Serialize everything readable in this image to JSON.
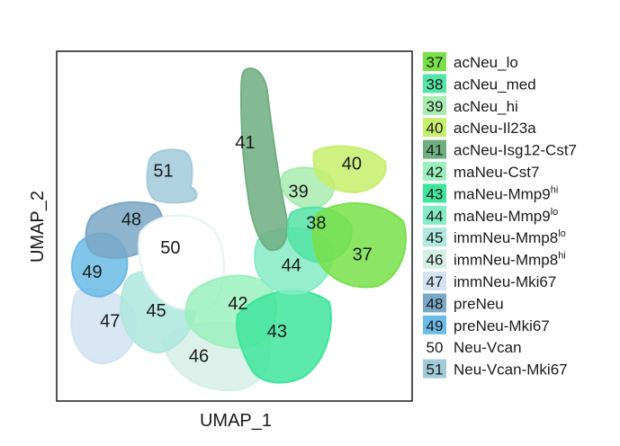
{
  "chart_data": {
    "type": "scatter",
    "title": "",
    "xlabel": "UMAP_1",
    "ylabel": "UMAP_2",
    "xlim": [
      0,
      100
    ],
    "ylim": [
      0,
      100
    ],
    "grid": false,
    "legend_placement": "right",
    "series": [
      {
        "id": "37",
        "name_main": "acNeu_lo",
        "name_sup": "",
        "color": "#79e04a"
      },
      {
        "id": "38",
        "name_main": "acNeu_med",
        "name_sup": "",
        "color": "#55e3a6"
      },
      {
        "id": "39",
        "name_main": "acNeu_hi",
        "name_sup": "",
        "color": "#a8ecb0"
      },
      {
        "id": "40",
        "name_main": "acNeu-Il23a",
        "name_sup": "",
        "color": "#c6ef6c"
      },
      {
        "id": "41",
        "name_main": "acNeu-Isg12-Cst7",
        "name_sup": "",
        "color": "#6fae80"
      },
      {
        "id": "42",
        "name_main": "maNeu-Cst7",
        "name_sup": "",
        "color": "#9bf0bd"
      },
      {
        "id": "43",
        "name_main": "maNeu-Mmp9",
        "name_sup": "hi",
        "color": "#3fe59c"
      },
      {
        "id": "44",
        "name_main": "maNeu-Mmp9",
        "name_sup": "lo",
        "color": "#84ebc6"
      },
      {
        "id": "45",
        "name_main": "immNeu-Mmp8",
        "name_sup": "lo",
        "color": "#aee8de"
      },
      {
        "id": "46",
        "name_main": "immNeu-Mmp8",
        "name_sup": "hi",
        "color": "#d5eee6"
      },
      {
        "id": "47",
        "name_main": "immNeu-Mki67",
        "name_sup": "",
        "color": "#d2e2f2"
      },
      {
        "id": "48",
        "name_main": "preNeu",
        "name_sup": "",
        "color": "#7aa7c6"
      },
      {
        "id": "49",
        "name_main": "preNeu-Mki67",
        "name_sup": "",
        "color": "#6bbbe8"
      },
      {
        "id": "50",
        "name_main": "Neu-Vcan",
        "name_sup": "",
        "color": "#ffffff"
      },
      {
        "id": "51",
        "name_main": "Neu-Vcan-Mki67",
        "name_sup": "",
        "color": "#a2cadb"
      }
    ],
    "cluster_label_positions": [
      {
        "id": "37",
        "x": 86,
        "y": 42
      },
      {
        "id": "38",
        "x": 73,
        "y": 51
      },
      {
        "id": "39",
        "x": 68,
        "y": 60
      },
      {
        "id": "40",
        "x": 83,
        "y": 68
      },
      {
        "id": "41",
        "x": 53,
        "y": 74
      },
      {
        "id": "42",
        "x": 51,
        "y": 28
      },
      {
        "id": "43",
        "x": 62,
        "y": 20
      },
      {
        "id": "44",
        "x": 66,
        "y": 39
      },
      {
        "id": "45",
        "x": 28,
        "y": 26
      },
      {
        "id": "46",
        "x": 40,
        "y": 13
      },
      {
        "id": "47",
        "x": 15,
        "y": 23
      },
      {
        "id": "48",
        "x": 21,
        "y": 52
      },
      {
        "id": "49",
        "x": 10,
        "y": 37
      },
      {
        "id": "50",
        "x": 32,
        "y": 44
      },
      {
        "id": "51",
        "x": 30,
        "y": 66
      }
    ]
  }
}
